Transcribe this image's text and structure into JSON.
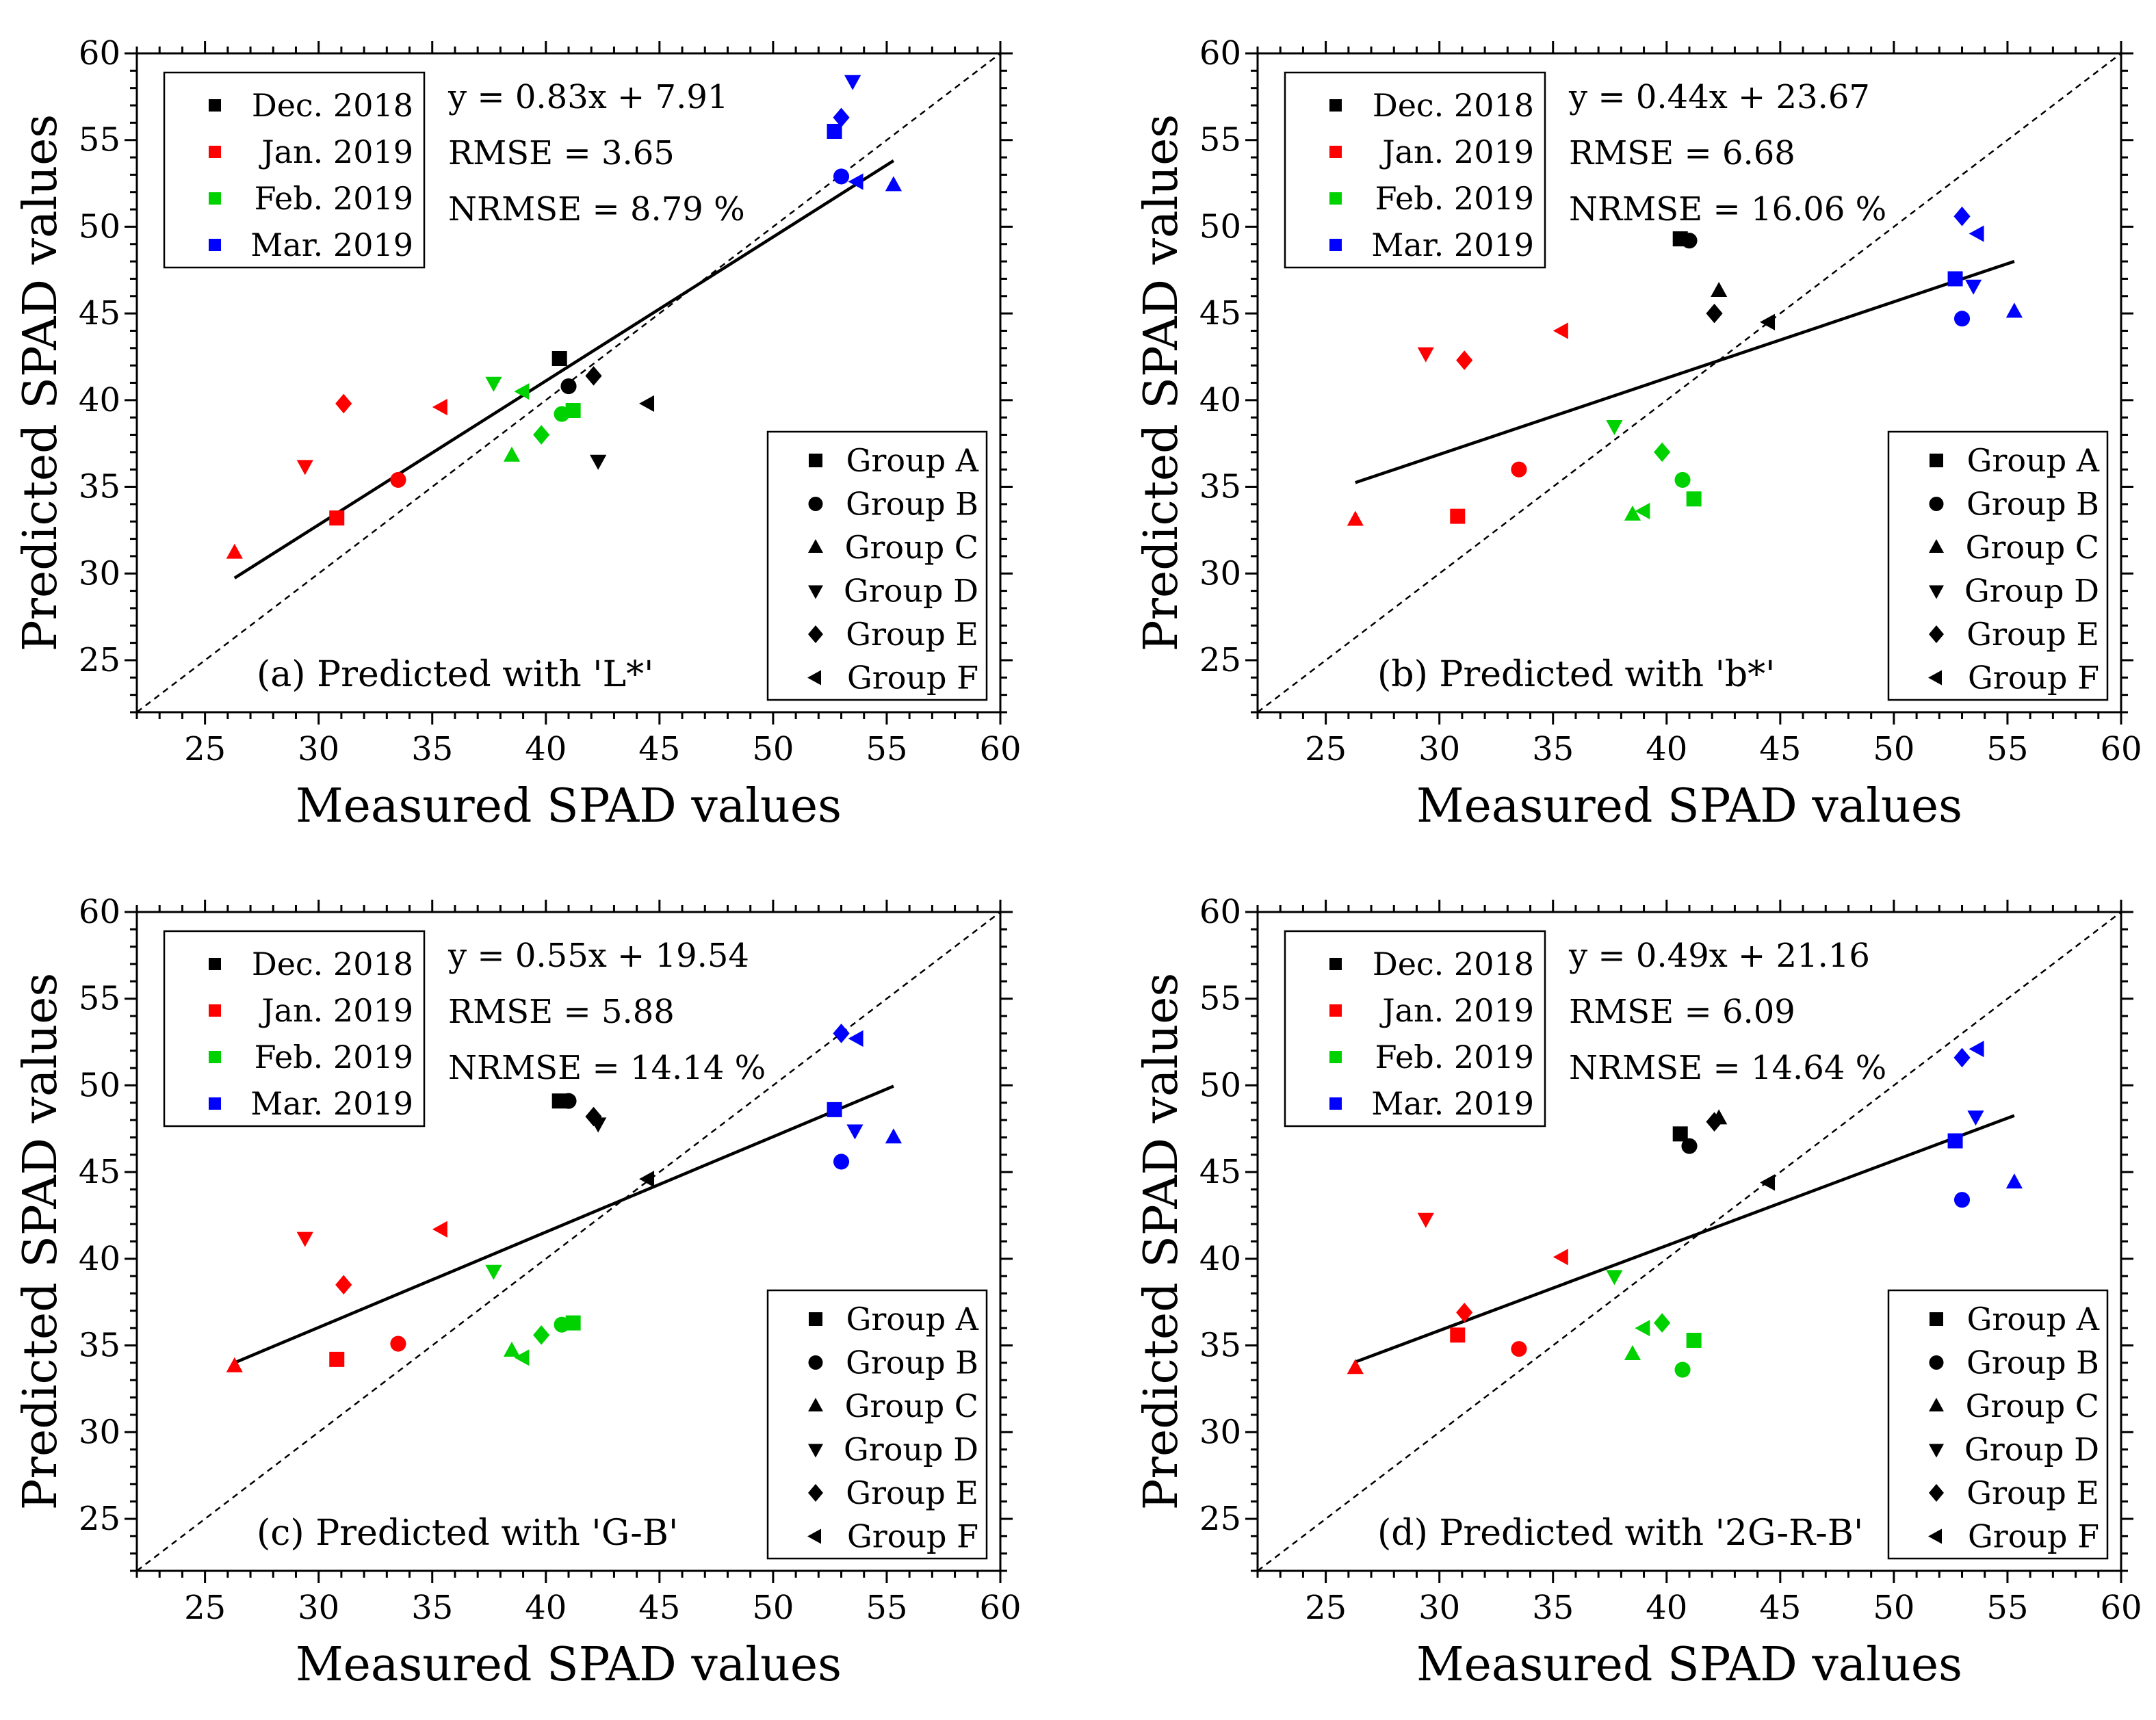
{
  "figure": {
    "date_legend": [
      "Dec. 2018",
      "Jan. 2019",
      "Feb. 2019",
      "Mar. 2019"
    ],
    "date_colors": [
      "#000000",
      "#ff0000",
      "#00d200",
      "#0000ff"
    ],
    "group_legend": [
      "Group A",
      "Group B",
      "Group C",
      "Group D",
      "Group E",
      "Group F"
    ],
    "group_markers": [
      "square",
      "circle",
      "triangle-up",
      "triangle-down",
      "diamond",
      "triangle-left"
    ]
  },
  "chart_data": [
    {
      "type": "scatter",
      "panel": "a",
      "caption": "(a) Predicted with 'L*'",
      "xlabel": "Measured SPAD values",
      "ylabel": "Predicted SPAD values",
      "xlim": [
        22,
        60
      ],
      "ylim": [
        22,
        60
      ],
      "xticks": [
        25,
        30,
        35,
        40,
        45,
        50,
        55,
        60
      ],
      "yticks": [
        25,
        30,
        35,
        40,
        45,
        50,
        55,
        60
      ],
      "equation": "y = 0.83x + 7.91",
      "rmse": "RMSE = 3.65",
      "nrmse": "NRMSE = 8.79 %",
      "fit": {
        "slope": 0.83,
        "intercept": 7.91,
        "x_range": [
          26.3,
          55.3
        ]
      },
      "reference_line": "1:1",
      "points": [
        {
          "date": 0,
          "group": 0,
          "x": 40.6,
          "y": 42.4
        },
        {
          "date": 0,
          "group": 1,
          "x": 41.0,
          "y": 40.8
        },
        {
          "date": 0,
          "group": 3,
          "x": 42.3,
          "y": 36.5
        },
        {
          "date": 0,
          "group": 4,
          "x": 42.1,
          "y": 41.4
        },
        {
          "date": 0,
          "group": 5,
          "x": 44.5,
          "y": 39.8
        },
        {
          "date": 1,
          "group": 0,
          "x": 30.8,
          "y": 33.2
        },
        {
          "date": 1,
          "group": 1,
          "x": 33.5,
          "y": 35.4
        },
        {
          "date": 1,
          "group": 2,
          "x": 26.3,
          "y": 31.2
        },
        {
          "date": 1,
          "group": 3,
          "x": 29.4,
          "y": 36.2
        },
        {
          "date": 1,
          "group": 4,
          "x": 31.1,
          "y": 39.8
        },
        {
          "date": 1,
          "group": 5,
          "x": 35.4,
          "y": 39.6
        },
        {
          "date": 2,
          "group": 0,
          "x": 41.2,
          "y": 39.4
        },
        {
          "date": 2,
          "group": 1,
          "x": 40.7,
          "y": 39.2
        },
        {
          "date": 2,
          "group": 2,
          "x": 38.5,
          "y": 36.8
        },
        {
          "date": 2,
          "group": 3,
          "x": 37.7,
          "y": 41.0
        },
        {
          "date": 2,
          "group": 4,
          "x": 39.8,
          "y": 38.0
        },
        {
          "date": 2,
          "group": 5,
          "x": 39.0,
          "y": 40.5
        },
        {
          "date": 3,
          "group": 0,
          "x": 52.7,
          "y": 55.5
        },
        {
          "date": 3,
          "group": 1,
          "x": 53.0,
          "y": 52.9
        },
        {
          "date": 3,
          "group": 2,
          "x": 55.3,
          "y": 52.4
        },
        {
          "date": 3,
          "group": 3,
          "x": 53.5,
          "y": 58.4
        },
        {
          "date": 3,
          "group": 4,
          "x": 53.0,
          "y": 56.3
        },
        {
          "date": 3,
          "group": 5,
          "x": 53.7,
          "y": 52.6
        }
      ]
    },
    {
      "type": "scatter",
      "panel": "b",
      "caption": "(b) Predicted with 'b*'",
      "xlabel": "Measured SPAD values",
      "ylabel": "Predicted SPAD values",
      "xlim": [
        22,
        60
      ],
      "ylim": [
        22,
        60
      ],
      "xticks": [
        25,
        30,
        35,
        40,
        45,
        50,
        55,
        60
      ],
      "yticks": [
        25,
        30,
        35,
        40,
        45,
        50,
        55,
        60
      ],
      "equation": "y = 0.44x + 23.67",
      "rmse": "RMSE = 6.68",
      "nrmse": "NRMSE = 16.06 %",
      "fit": {
        "slope": 0.44,
        "intercept": 23.67,
        "x_range": [
          26.3,
          55.3
        ]
      },
      "reference_line": "1:1",
      "points": [
        {
          "date": 0,
          "group": 0,
          "x": 40.6,
          "y": 49.3
        },
        {
          "date": 0,
          "group": 1,
          "x": 41.0,
          "y": 49.2
        },
        {
          "date": 0,
          "group": 2,
          "x": 42.3,
          "y": 46.3
        },
        {
          "date": 0,
          "group": 4,
          "x": 42.1,
          "y": 45.0
        },
        {
          "date": 0,
          "group": 5,
          "x": 44.5,
          "y": 44.5
        },
        {
          "date": 1,
          "group": 0,
          "x": 30.8,
          "y": 33.3
        },
        {
          "date": 1,
          "group": 1,
          "x": 33.5,
          "y": 36.0
        },
        {
          "date": 1,
          "group": 2,
          "x": 26.3,
          "y": 33.1
        },
        {
          "date": 1,
          "group": 3,
          "x": 29.4,
          "y": 42.7
        },
        {
          "date": 1,
          "group": 4,
          "x": 31.1,
          "y": 42.3
        },
        {
          "date": 1,
          "group": 5,
          "x": 35.4,
          "y": 44.0
        },
        {
          "date": 2,
          "group": 0,
          "x": 41.2,
          "y": 34.3
        },
        {
          "date": 2,
          "group": 1,
          "x": 40.7,
          "y": 35.4
        },
        {
          "date": 2,
          "group": 2,
          "x": 38.5,
          "y": 33.4
        },
        {
          "date": 2,
          "group": 3,
          "x": 37.7,
          "y": 38.5
        },
        {
          "date": 2,
          "group": 4,
          "x": 39.8,
          "y": 37.0
        },
        {
          "date": 2,
          "group": 5,
          "x": 39.0,
          "y": 33.6
        },
        {
          "date": 3,
          "group": 0,
          "x": 52.7,
          "y": 47.0
        },
        {
          "date": 3,
          "group": 1,
          "x": 53.0,
          "y": 44.7
        },
        {
          "date": 3,
          "group": 2,
          "x": 55.3,
          "y": 45.1
        },
        {
          "date": 3,
          "group": 3,
          "x": 53.5,
          "y": 46.6
        },
        {
          "date": 3,
          "group": 4,
          "x": 53.0,
          "y": 50.6
        },
        {
          "date": 3,
          "group": 5,
          "x": 53.7,
          "y": 49.6
        }
      ]
    },
    {
      "type": "scatter",
      "panel": "c",
      "caption": "(c) Predicted with 'G-B'",
      "xlabel": "Measured SPAD values",
      "ylabel": "Predicted SPAD values",
      "xlim": [
        22,
        60
      ],
      "ylim": [
        22,
        60
      ],
      "xticks": [
        25,
        30,
        35,
        40,
        45,
        50,
        55,
        60
      ],
      "yticks": [
        25,
        30,
        35,
        40,
        45,
        50,
        55,
        60
      ],
      "equation": "y = 0.55x + 19.54",
      "rmse": "RMSE = 5.88",
      "nrmse": "NRMSE = 14.14 %",
      "fit": {
        "slope": 0.55,
        "intercept": 19.54,
        "x_range": [
          26.3,
          55.3
        ]
      },
      "reference_line": "1:1",
      "points": [
        {
          "date": 0,
          "group": 0,
          "x": 40.6,
          "y": 49.1
        },
        {
          "date": 0,
          "group": 1,
          "x": 41.0,
          "y": 49.1
        },
        {
          "date": 0,
          "group": 3,
          "x": 42.3,
          "y": 47.8
        },
        {
          "date": 0,
          "group": 4,
          "x": 42.1,
          "y": 48.2
        },
        {
          "date": 0,
          "group": 5,
          "x": 44.5,
          "y": 44.6
        },
        {
          "date": 1,
          "group": 0,
          "x": 30.8,
          "y": 34.2
        },
        {
          "date": 1,
          "group": 1,
          "x": 33.5,
          "y": 35.1
        },
        {
          "date": 1,
          "group": 2,
          "x": 26.3,
          "y": 33.8
        },
        {
          "date": 1,
          "group": 3,
          "x": 29.4,
          "y": 41.2
        },
        {
          "date": 1,
          "group": 4,
          "x": 31.1,
          "y": 38.5
        },
        {
          "date": 1,
          "group": 5,
          "x": 35.4,
          "y": 41.7
        },
        {
          "date": 2,
          "group": 0,
          "x": 41.2,
          "y": 36.3
        },
        {
          "date": 2,
          "group": 1,
          "x": 40.7,
          "y": 36.2
        },
        {
          "date": 2,
          "group": 2,
          "x": 38.5,
          "y": 34.7
        },
        {
          "date": 2,
          "group": 3,
          "x": 37.7,
          "y": 39.3
        },
        {
          "date": 2,
          "group": 4,
          "x": 39.8,
          "y": 35.6
        },
        {
          "date": 2,
          "group": 5,
          "x": 39.0,
          "y": 34.3
        },
        {
          "date": 3,
          "group": 0,
          "x": 52.7,
          "y": 48.6
        },
        {
          "date": 3,
          "group": 1,
          "x": 53.0,
          "y": 45.6
        },
        {
          "date": 3,
          "group": 2,
          "x": 55.3,
          "y": 47.0
        },
        {
          "date": 3,
          "group": 3,
          "x": 53.6,
          "y": 47.4
        },
        {
          "date": 3,
          "group": 4,
          "x": 53.0,
          "y": 53.0
        },
        {
          "date": 3,
          "group": 5,
          "x": 53.7,
          "y": 52.7
        }
      ]
    },
    {
      "type": "scatter",
      "panel": "d",
      "caption": "(d) Predicted with '2G-R-B'",
      "xlabel": "Measured SPAD values",
      "ylabel": "Predicted SPAD values",
      "xlim": [
        22,
        60
      ],
      "ylim": [
        22,
        60
      ],
      "xticks": [
        25,
        30,
        35,
        40,
        45,
        50,
        55,
        60
      ],
      "yticks": [
        25,
        30,
        35,
        40,
        45,
        50,
        55,
        60
      ],
      "equation": "y = 0.49x + 21.16",
      "rmse": "RMSE = 6.09",
      "nrmse": "NRMSE = 14.64 %",
      "fit": {
        "slope": 0.49,
        "intercept": 21.16,
        "x_range": [
          26.3,
          55.3
        ]
      },
      "reference_line": "1:1",
      "points": [
        {
          "date": 0,
          "group": 0,
          "x": 40.6,
          "y": 47.2
        },
        {
          "date": 0,
          "group": 1,
          "x": 41.0,
          "y": 46.5
        },
        {
          "date": 0,
          "group": 2,
          "x": 42.3,
          "y": 48.1
        },
        {
          "date": 0,
          "group": 4,
          "x": 42.1,
          "y": 47.9
        },
        {
          "date": 0,
          "group": 5,
          "x": 44.5,
          "y": 44.4
        },
        {
          "date": 1,
          "group": 0,
          "x": 30.8,
          "y": 35.6
        },
        {
          "date": 1,
          "group": 1,
          "x": 33.5,
          "y": 34.8
        },
        {
          "date": 1,
          "group": 2,
          "x": 26.3,
          "y": 33.7
        },
        {
          "date": 1,
          "group": 3,
          "x": 29.4,
          "y": 42.3
        },
        {
          "date": 1,
          "group": 4,
          "x": 31.1,
          "y": 36.9
        },
        {
          "date": 1,
          "group": 5,
          "x": 35.4,
          "y": 40.1
        },
        {
          "date": 2,
          "group": 0,
          "x": 41.2,
          "y": 35.3
        },
        {
          "date": 2,
          "group": 1,
          "x": 40.7,
          "y": 33.6
        },
        {
          "date": 2,
          "group": 2,
          "x": 38.5,
          "y": 34.5
        },
        {
          "date": 2,
          "group": 3,
          "x": 37.7,
          "y": 39.0
        },
        {
          "date": 2,
          "group": 4,
          "x": 39.8,
          "y": 36.3
        },
        {
          "date": 2,
          "group": 5,
          "x": 39.0,
          "y": 36.0
        },
        {
          "date": 3,
          "group": 0,
          "x": 52.7,
          "y": 46.8
        },
        {
          "date": 3,
          "group": 1,
          "x": 53.0,
          "y": 43.4
        },
        {
          "date": 3,
          "group": 2,
          "x": 55.3,
          "y": 44.4
        },
        {
          "date": 3,
          "group": 3,
          "x": 53.6,
          "y": 48.2
        },
        {
          "date": 3,
          "group": 4,
          "x": 53.0,
          "y": 51.6
        },
        {
          "date": 3,
          "group": 5,
          "x": 53.7,
          "y": 52.1
        }
      ]
    }
  ]
}
